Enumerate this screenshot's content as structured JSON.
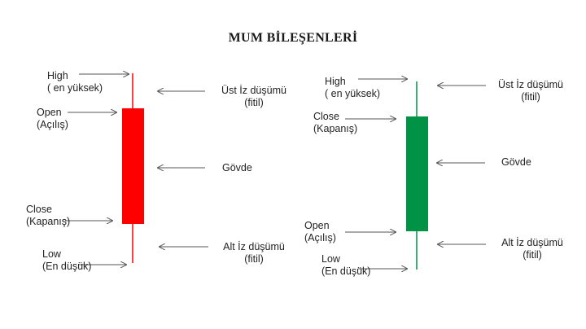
{
  "title": "MUM BİLEŞENLERİ",
  "colors": {
    "bearish": "#ff0000",
    "bullish": "#009245",
    "arrow": "#555555",
    "text": "#222222"
  },
  "candles": [
    {
      "kind": "bearish",
      "labels": {
        "high": "High",
        "high_sub": "( en yüksek)",
        "open": "Open",
        "open_sub": "(Açılış)",
        "close": "Close",
        "close_sub": "(Kapanış)",
        "low": "Low",
        "low_sub": "(En düşük)",
        "upper_wick": "Üst İz düşümü",
        "upper_wick_sub": "(fitil)",
        "body": "Gövde",
        "lower_wick": "Alt  İz düşümü",
        "lower_wick_sub": "(fitil)"
      }
    },
    {
      "kind": "bullish",
      "labels": {
        "high": "High",
        "high_sub": "( en yüksek)",
        "close": "Close",
        "close_sub": "(Kapanış)",
        "open": "Open",
        "open_sub": "(Açılış)",
        "low": "Low",
        "low_sub": "(En düşük)",
        "upper_wick": "Üst İz düşümü",
        "upper_wick_sub": "(fitil)",
        "body": "Gövde",
        "lower_wick": "Alt İz düşümü",
        "lower_wick_sub": "(fitil)"
      }
    }
  ]
}
